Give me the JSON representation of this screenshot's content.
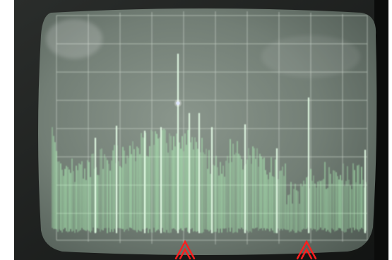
{
  "photo": {
    "subject": "spectrum-analyzer-crt-screen",
    "trace_color": "#b6ffbf",
    "graticule_color": "#c9d2c8",
    "screen_color": "#6f7a72",
    "bezel_color": "#1d1f1e",
    "marker_color": "#ff1e1e",
    "markers": [
      {
        "name": "marker-left",
        "icon": "double-arrow-up"
      },
      {
        "name": "marker-right",
        "icon": "double-arrow-up"
      }
    ],
    "graticule": {
      "columns": 10,
      "rows": 8
    }
  }
}
